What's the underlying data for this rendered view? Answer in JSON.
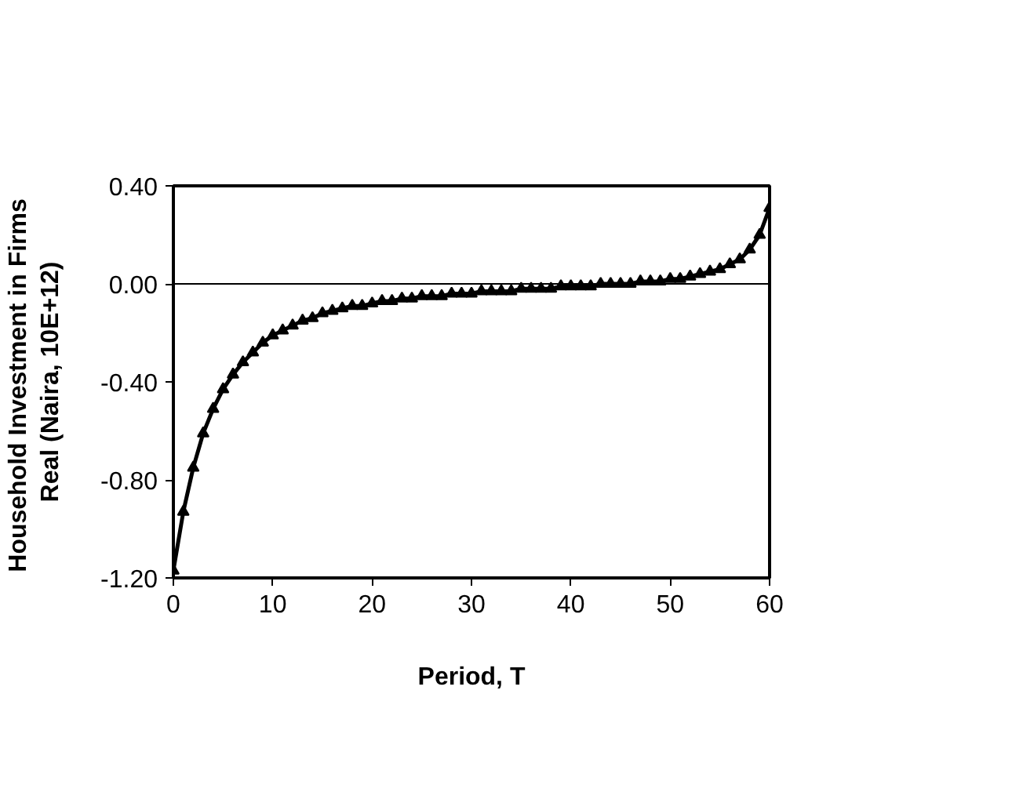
{
  "chart_data": {
    "type": "line",
    "xlabel": "Period, T",
    "ylabel": "Household Investment  in Firms\nReal (Naira, 10E+12)",
    "x": [
      0,
      1,
      2,
      3,
      4,
      5,
      6,
      7,
      8,
      9,
      10,
      11,
      12,
      13,
      14,
      15,
      16,
      17,
      18,
      19,
      20,
      21,
      22,
      23,
      24,
      25,
      26,
      27,
      28,
      29,
      30,
      31,
      32,
      33,
      34,
      35,
      36,
      37,
      38,
      39,
      40,
      41,
      42,
      43,
      44,
      45,
      46,
      47,
      48,
      49,
      50,
      51,
      52,
      53,
      54,
      55,
      56,
      57,
      58,
      59,
      60
    ],
    "series": [
      {
        "color": "#000000",
        "values": [
          -1.17,
          -0.93,
          -0.75,
          -0.61,
          -0.51,
          -0.43,
          -0.37,
          -0.32,
          -0.28,
          -0.24,
          -0.21,
          -0.19,
          -0.17,
          -0.15,
          -0.14,
          -0.12,
          -0.11,
          -0.1,
          -0.09,
          -0.09,
          -0.08,
          -0.07,
          -0.07,
          -0.06,
          -0.06,
          -0.05,
          -0.05,
          -0.05,
          -0.04,
          -0.04,
          -0.04,
          -0.03,
          -0.03,
          -0.03,
          -0.03,
          -0.02,
          -0.02,
          -0.02,
          -0.02,
          -0.01,
          -0.01,
          -0.01,
          -0.01,
          0.0,
          0.0,
          0.0,
          0.0,
          0.01,
          0.01,
          0.01,
          0.02,
          0.02,
          0.03,
          0.04,
          0.05,
          0.06,
          0.08,
          0.1,
          0.14,
          0.2,
          0.31
        ]
      }
    ],
    "xlim": [
      0,
      60
    ],
    "xticks": [
      0,
      10,
      20,
      30,
      40,
      50,
      60
    ],
    "ylim": [
      -1.2,
      0.4
    ],
    "yticks": [
      {
        "value": -1.2,
        "label": "-1.20"
      },
      {
        "value": -0.8,
        "label": "-0.80"
      },
      {
        "value": -0.4,
        "label": "-0.40"
      },
      {
        "value": 0,
        "label": "0.00"
      },
      {
        "value": 0.4,
        "label": "0.40"
      }
    ],
    "ref_lines": [
      {
        "axis": "y",
        "value": 0,
        "color": "#000000"
      }
    ],
    "marker": "triangle",
    "line_style": "solid"
  }
}
